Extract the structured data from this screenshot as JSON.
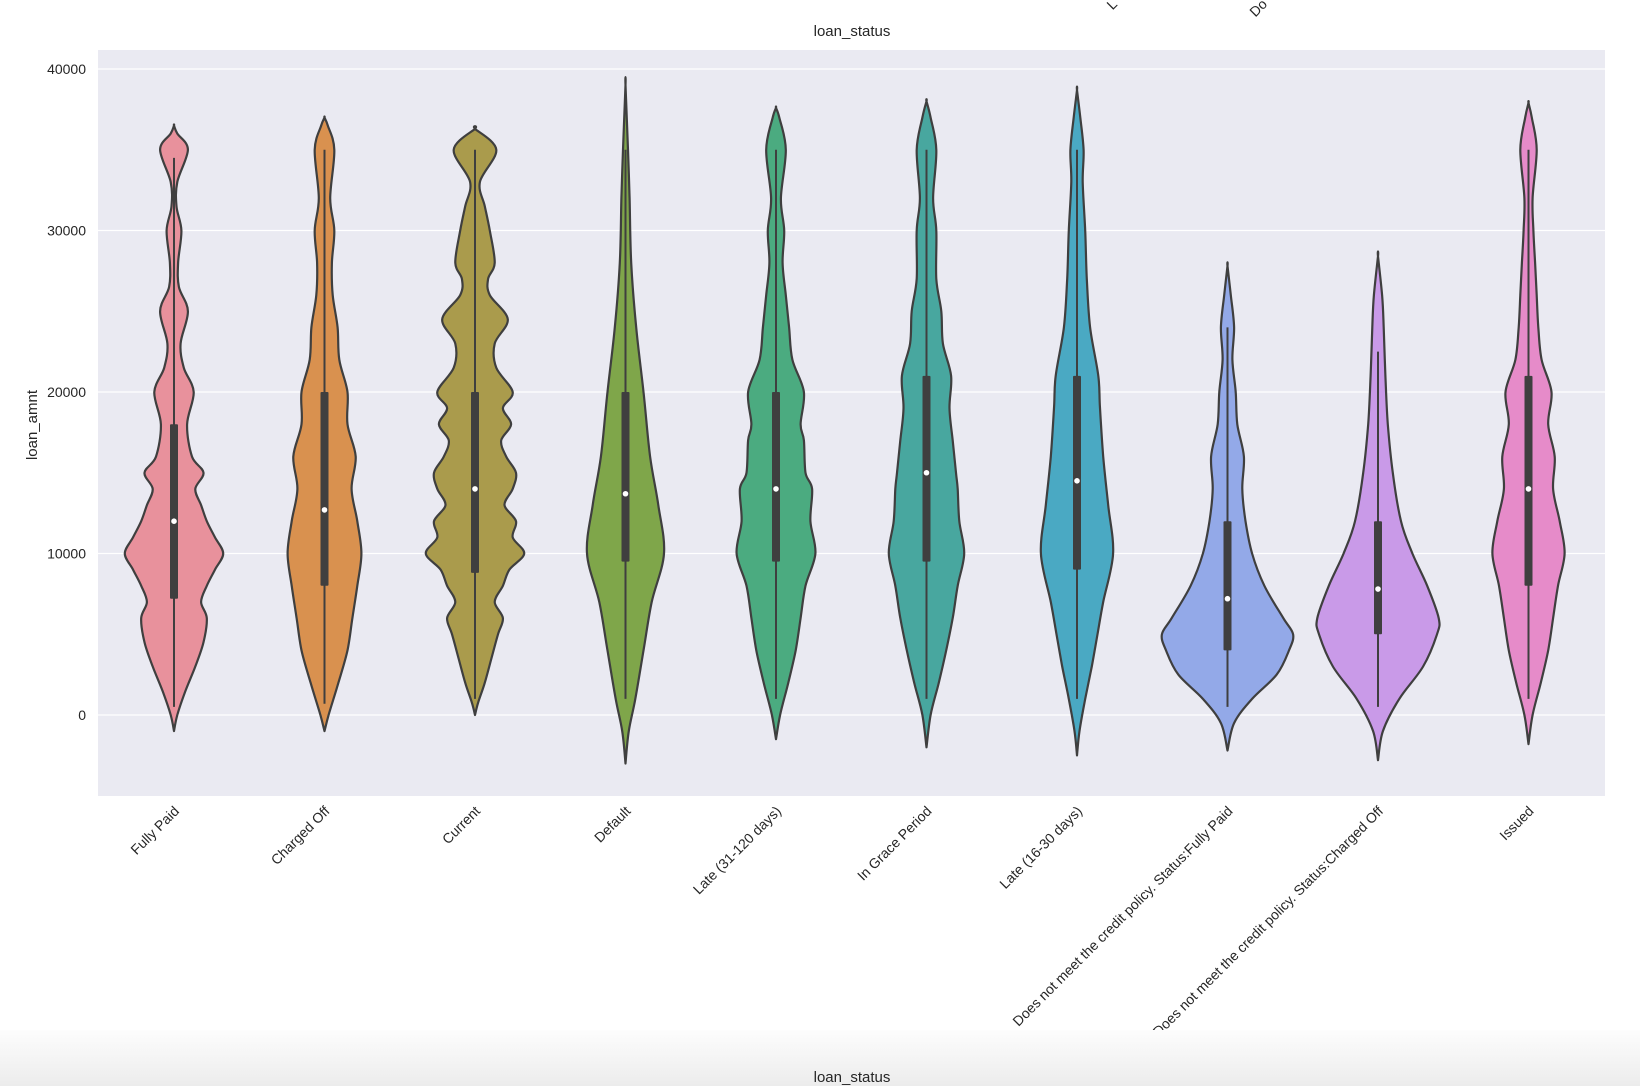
{
  "chart_data": {
    "type": "violin",
    "title": "loan_status",
    "xlabel": "loan_status",
    "ylabel": "loan_amnt",
    "ylim": [
      -5000,
      40000
    ],
    "yticks": [
      0,
      10000,
      20000,
      30000,
      40000
    ],
    "ytick_labels": [
      "0",
      "10000",
      "20000",
      "30000",
      "40000"
    ],
    "grid": true,
    "legend": "none",
    "top_overflow_labels": [
      "L",
      "Do"
    ],
    "categories": [
      "Fully Paid",
      "Charged Off",
      "Current",
      "Default",
      "Late (31-120 days)",
      "In Grace Period",
      "Late (16-30 days)",
      "Does not meet the credit policy. Status:Fully Paid",
      "Does not meet the credit policy. Status:Charged Off",
      "Issued"
    ],
    "colors": [
      "#e8919c",
      "#d9914f",
      "#aa9b4c",
      "#7fa64a",
      "#4bab80",
      "#48a79f",
      "#4aa9c3",
      "#93a9e8",
      "#c99ae8",
      "#e68bc9"
    ],
    "series": [
      {
        "category": "Fully Paid",
        "min": 500,
        "q1": 7200,
        "median": 12000,
        "q3": 18000,
        "max": 34500,
        "kde_range": [
          -1000,
          36500
        ],
        "density": [
          [
            -1000,
            0
          ],
          [
            0,
            0.04
          ],
          [
            1500,
            0.14
          ],
          [
            3000,
            0.26
          ],
          [
            4500,
            0.36
          ],
          [
            6000,
            0.4
          ],
          [
            7000,
            0.33
          ],
          [
            8000,
            0.4
          ],
          [
            9000,
            0.5
          ],
          [
            10000,
            0.6
          ],
          [
            11000,
            0.5
          ],
          [
            12000,
            0.4
          ],
          [
            13000,
            0.33
          ],
          [
            14000,
            0.26
          ],
          [
            15000,
            0.36
          ],
          [
            16000,
            0.22
          ],
          [
            18000,
            0.16
          ],
          [
            20000,
            0.24
          ],
          [
            21500,
            0.12
          ],
          [
            23000,
            0.08
          ],
          [
            25000,
            0.17
          ],
          [
            26500,
            0.06
          ],
          [
            28000,
            0.05
          ],
          [
            30000,
            0.09
          ],
          [
            31500,
            0.03
          ],
          [
            33000,
            0.04
          ],
          [
            35000,
            0.17
          ],
          [
            36000,
            0.04
          ],
          [
            36500,
            0
          ]
        ]
      },
      {
        "category": "Charged Off",
        "min": 700,
        "q1": 8000,
        "median": 12700,
        "q3": 20000,
        "max": 35000,
        "kde_range": [
          -1000,
          37000
        ],
        "density": [
          [
            -1000,
            0
          ],
          [
            0,
            0.05
          ],
          [
            2000,
            0.17
          ],
          [
            4000,
            0.28
          ],
          [
            6000,
            0.34
          ],
          [
            8000,
            0.4
          ],
          [
            10000,
            0.45
          ],
          [
            12000,
            0.4
          ],
          [
            14000,
            0.33
          ],
          [
            16000,
            0.38
          ],
          [
            18000,
            0.28
          ],
          [
            20000,
            0.28
          ],
          [
            22000,
            0.18
          ],
          [
            24000,
            0.16
          ],
          [
            26000,
            0.1
          ],
          [
            28000,
            0.09
          ],
          [
            30000,
            0.12
          ],
          [
            32000,
            0.07
          ],
          [
            35000,
            0.12
          ],
          [
            36500,
            0.04
          ],
          [
            37000,
            0
          ]
        ]
      },
      {
        "category": "Current",
        "min": 1000,
        "q1": 8800,
        "median": 14000,
        "q3": 20000,
        "max": 35000,
        "kde_range": [
          0,
          36300
        ],
        "density": [
          [
            0,
            0
          ],
          [
            800,
            0.04
          ],
          [
            2000,
            0.12
          ],
          [
            3500,
            0.2
          ],
          [
            5000,
            0.28
          ],
          [
            6000,
            0.34
          ],
          [
            7000,
            0.24
          ],
          [
            8000,
            0.34
          ],
          [
            9000,
            0.42
          ],
          [
            10000,
            0.6
          ],
          [
            11000,
            0.46
          ],
          [
            12000,
            0.5
          ],
          [
            13000,
            0.36
          ],
          [
            14000,
            0.46
          ],
          [
            15000,
            0.5
          ],
          [
            16000,
            0.38
          ],
          [
            17000,
            0.32
          ],
          [
            18000,
            0.44
          ],
          [
            19000,
            0.34
          ],
          [
            20000,
            0.46
          ],
          [
            21500,
            0.26
          ],
          [
            23000,
            0.24
          ],
          [
            24500,
            0.4
          ],
          [
            26000,
            0.18
          ],
          [
            27000,
            0.16
          ],
          [
            28000,
            0.24
          ],
          [
            30000,
            0.18
          ],
          [
            31500,
            0.12
          ],
          [
            33000,
            0.06
          ],
          [
            35000,
            0.26
          ],
          [
            36300,
            0
          ]
        ]
      },
      {
        "category": "Default",
        "min": 1000,
        "q1": 9500,
        "median": 13700,
        "q3": 20000,
        "max": 35000,
        "kde_range": [
          -3000,
          39000
        ],
        "density": [
          [
            -3000,
            0
          ],
          [
            -1000,
            0.04
          ],
          [
            1000,
            0.12
          ],
          [
            4000,
            0.22
          ],
          [
            7000,
            0.32
          ],
          [
            10000,
            0.47
          ],
          [
            13000,
            0.4
          ],
          [
            16000,
            0.3
          ],
          [
            20000,
            0.22
          ],
          [
            24000,
            0.13
          ],
          [
            28000,
            0.07
          ],
          [
            32000,
            0.05
          ],
          [
            35000,
            0.03
          ],
          [
            39000,
            0
          ]
        ]
      },
      {
        "category": "Late (31-120 days)",
        "min": 1000,
        "q1": 9500,
        "median": 14000,
        "q3": 20000,
        "max": 35000,
        "kde_range": [
          -1500,
          37600
        ],
        "density": [
          [
            -1500,
            0
          ],
          [
            0,
            0.05
          ],
          [
            2000,
            0.15
          ],
          [
            4000,
            0.24
          ],
          [
            6000,
            0.3
          ],
          [
            8000,
            0.36
          ],
          [
            10000,
            0.48
          ],
          [
            12000,
            0.42
          ],
          [
            14000,
            0.44
          ],
          [
            15000,
            0.36
          ],
          [
            17000,
            0.34
          ],
          [
            18000,
            0.3
          ],
          [
            20000,
            0.34
          ],
          [
            22000,
            0.2
          ],
          [
            24000,
            0.16
          ],
          [
            26000,
            0.12
          ],
          [
            28000,
            0.08
          ],
          [
            30000,
            0.1
          ],
          [
            32000,
            0.06
          ],
          [
            35000,
            0.12
          ],
          [
            37000,
            0.04
          ],
          [
            37600,
            0
          ]
        ]
      },
      {
        "category": "In Grace Period",
        "min": 1000,
        "q1": 9500,
        "median": 15000,
        "q3": 21000,
        "max": 35000,
        "kde_range": [
          -2000,
          38000
        ],
        "density": [
          [
            -2000,
            0
          ],
          [
            0,
            0.05
          ],
          [
            2000,
            0.15
          ],
          [
            4000,
            0.24
          ],
          [
            6000,
            0.32
          ],
          [
            8000,
            0.38
          ],
          [
            10000,
            0.46
          ],
          [
            12000,
            0.4
          ],
          [
            14000,
            0.38
          ],
          [
            15000,
            0.36
          ],
          [
            17000,
            0.32
          ],
          [
            19000,
            0.28
          ],
          [
            21000,
            0.3
          ],
          [
            23000,
            0.2
          ],
          [
            25000,
            0.18
          ],
          [
            27000,
            0.12
          ],
          [
            30000,
            0.12
          ],
          [
            32000,
            0.08
          ],
          [
            35000,
            0.12
          ],
          [
            37000,
            0.05
          ],
          [
            38000,
            0
          ]
        ]
      },
      {
        "category": "Late (16-30 days)",
        "min": 1000,
        "q1": 9000,
        "median": 14500,
        "q3": 21000,
        "max": 35000,
        "kde_range": [
          -2500,
          38700
        ],
        "density": [
          [
            -2500,
            0
          ],
          [
            -1000,
            0.03
          ],
          [
            1000,
            0.1
          ],
          [
            3000,
            0.18
          ],
          [
            5000,
            0.25
          ],
          [
            7000,
            0.32
          ],
          [
            10000,
            0.44
          ],
          [
            13000,
            0.38
          ],
          [
            16000,
            0.32
          ],
          [
            19000,
            0.28
          ],
          [
            21000,
            0.26
          ],
          [
            24000,
            0.16
          ],
          [
            27000,
            0.12
          ],
          [
            30000,
            0.1
          ],
          [
            33000,
            0.07
          ],
          [
            35000,
            0.08
          ],
          [
            37000,
            0.04
          ],
          [
            38700,
            0
          ]
        ]
      },
      {
        "category": "Does not meet the credit policy. Status:Fully Paid",
        "min": 500,
        "q1": 4000,
        "median": 7200,
        "q3": 12000,
        "max": 24000,
        "kde_range": [
          -2200,
          27800
        ],
        "density": [
          [
            -2200,
            0
          ],
          [
            -500,
            0.08
          ],
          [
            1000,
            0.3
          ],
          [
            2500,
            0.6
          ],
          [
            4000,
            0.75
          ],
          [
            5000,
            0.8
          ],
          [
            6000,
            0.68
          ],
          [
            8000,
            0.45
          ],
          [
            10000,
            0.3
          ],
          [
            12000,
            0.22
          ],
          [
            14000,
            0.18
          ],
          [
            16000,
            0.2
          ],
          [
            18000,
            0.12
          ],
          [
            20000,
            0.1
          ],
          [
            22000,
            0.06
          ],
          [
            24000,
            0.08
          ],
          [
            26000,
            0.04
          ],
          [
            27800,
            0
          ]
        ]
      },
      {
        "category": "Does not meet the credit policy. Status:Charged Off",
        "min": 500,
        "q1": 5000,
        "median": 7800,
        "q3": 12000,
        "max": 22500,
        "kde_range": [
          -2800,
          28400
        ],
        "density": [
          [
            -2800,
            0
          ],
          [
            -1000,
            0.06
          ],
          [
            1000,
            0.26
          ],
          [
            3000,
            0.55
          ],
          [
            5000,
            0.72
          ],
          [
            6000,
            0.74
          ],
          [
            8000,
            0.6
          ],
          [
            10000,
            0.42
          ],
          [
            12000,
            0.28
          ],
          [
            15000,
            0.18
          ],
          [
            18000,
            0.12
          ],
          [
            21000,
            0.09
          ],
          [
            24000,
            0.07
          ],
          [
            26000,
            0.05
          ],
          [
            28400,
            0
          ]
        ]
      },
      {
        "category": "Issued",
        "min": 1000,
        "q1": 8000,
        "median": 14000,
        "q3": 21000,
        "max": 35000,
        "kde_range": [
          -1800,
          37900
        ],
        "density": [
          [
            -1800,
            0
          ],
          [
            0,
            0.05
          ],
          [
            2000,
            0.15
          ],
          [
            4000,
            0.24
          ],
          [
            6000,
            0.3
          ],
          [
            8000,
            0.36
          ],
          [
            10000,
            0.44
          ],
          [
            12000,
            0.38
          ],
          [
            14000,
            0.3
          ],
          [
            16000,
            0.32
          ],
          [
            18000,
            0.24
          ],
          [
            20000,
            0.28
          ],
          [
            22000,
            0.16
          ],
          [
            24000,
            0.12
          ],
          [
            26000,
            0.1
          ],
          [
            28000,
            0.08
          ],
          [
            30000,
            0.06
          ],
          [
            32000,
            0.05
          ],
          [
            35000,
            0.1
          ],
          [
            37000,
            0.04
          ],
          [
            37900,
            0
          ]
        ]
      }
    ]
  }
}
